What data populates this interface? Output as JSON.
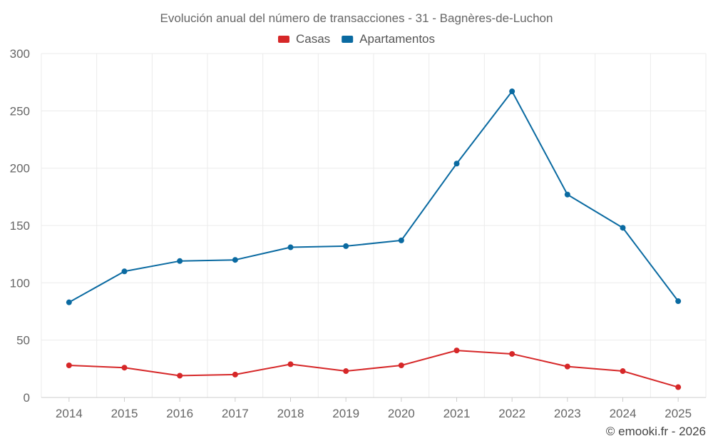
{
  "chart_data": {
    "type": "line",
    "title": "Evolución anual del número de transacciones - 31 - Bagnères-de-Luchon",
    "categories": [
      "2014",
      "2015",
      "2016",
      "2017",
      "2018",
      "2019",
      "2020",
      "2021",
      "2022",
      "2023",
      "2024",
      "2025"
    ],
    "series": [
      {
        "name": "Casas",
        "color": "#d62728",
        "values": [
          28,
          26,
          19,
          20,
          29,
          23,
          28,
          41,
          38,
          27,
          23,
          9
        ]
      },
      {
        "name": "Apartamentos",
        "color": "#0a6aa1",
        "values": [
          83,
          110,
          119,
          120,
          131,
          132,
          137,
          204,
          267,
          177,
          148,
          84
        ]
      }
    ],
    "yticks": [
      0,
      50,
      100,
      150,
      200,
      250,
      300
    ],
    "ylim": [
      0,
      300
    ],
    "xlabel": "",
    "ylabel": "",
    "legend_position": "top-center",
    "grid": true
  },
  "credit": "© emooki.fr - 2026"
}
